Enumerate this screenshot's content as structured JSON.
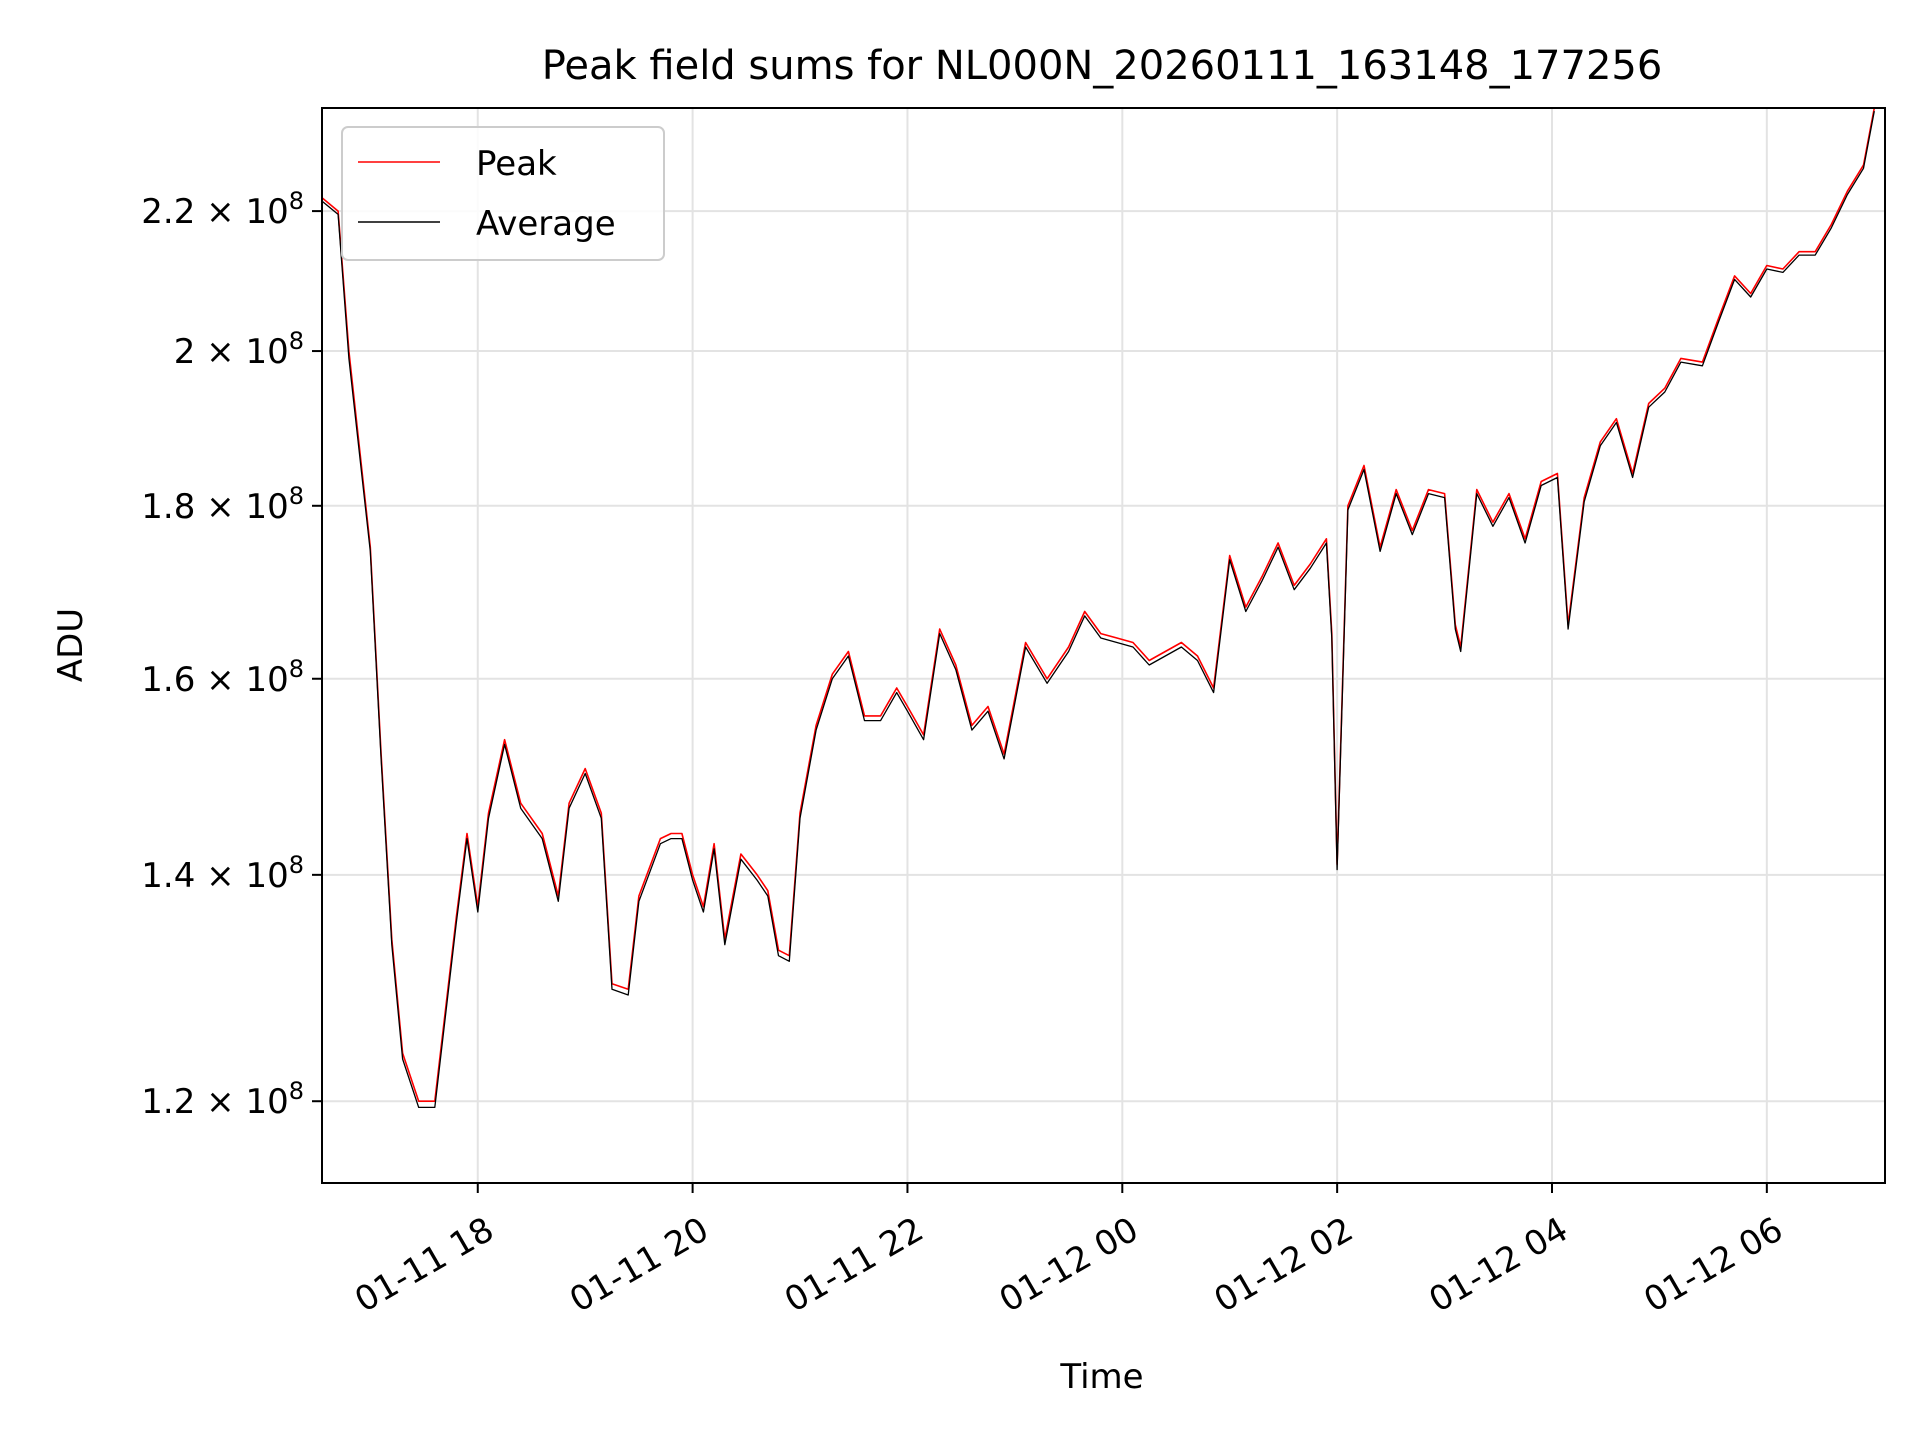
{
  "chart_data": {
    "type": "line",
    "title": "Peak field sums for NL000N_20260111_163148_177256",
    "xlabel": "Time",
    "ylabel": "ADU",
    "yscale": "log",
    "grid": true,
    "legend_location": "upper-left",
    "xlim_hours_from_2026-01-11T00:00": [
      16.55,
      31.1
    ],
    "ylim": [
      113500000,
      236000000
    ],
    "x_ticks": [
      {
        "hour": 18,
        "label": "01-11 18"
      },
      {
        "hour": 20,
        "label": "01-11 20"
      },
      {
        "hour": 22,
        "label": "01-11 22"
      },
      {
        "hour": 24,
        "label": "01-12 00"
      },
      {
        "hour": 26,
        "label": "01-12 02"
      },
      {
        "hour": 28,
        "label": "01-12 04"
      },
      {
        "hour": 30,
        "label": "01-12 06"
      }
    ],
    "y_ticks": [
      {
        "value": 120000000,
        "mantissa": "1.2",
        "base": "10",
        "exponent": "8"
      },
      {
        "value": 140000000,
        "mantissa": "1.4",
        "base": "10",
        "exponent": "8"
      },
      {
        "value": 160000000,
        "mantissa": "1.6",
        "base": "10",
        "exponent": "8"
      },
      {
        "value": 180000000,
        "mantissa": "1.8",
        "base": "10",
        "exponent": "8"
      },
      {
        "value": 200000000,
        "mantissa": "2",
        "base": "10",
        "exponent": "8"
      },
      {
        "value": 220000000,
        "mantissa": "2.2",
        "base": "10",
        "exponent": "8"
      }
    ],
    "series_x_hours": [
      16.55,
      16.7,
      16.8,
      17.0,
      17.1,
      17.2,
      17.3,
      17.45,
      17.6,
      17.8,
      17.9,
      18.0,
      18.1,
      18.25,
      18.4,
      18.6,
      18.75,
      18.85,
      19.0,
      19.15,
      19.25,
      19.4,
      19.5,
      19.7,
      19.8,
      19.9,
      20.0,
      20.1,
      20.2,
      20.3,
      20.45,
      20.6,
      20.7,
      20.8,
      20.9,
      21.0,
      21.15,
      21.3,
      21.45,
      21.6,
      21.75,
      21.9,
      22.0,
      22.15,
      22.3,
      22.45,
      22.6,
      22.75,
      22.9,
      23.1,
      23.3,
      23.5,
      23.65,
      23.8,
      23.95,
      24.1,
      24.25,
      24.4,
      24.55,
      24.7,
      24.85,
      25.0,
      25.15,
      25.3,
      25.45,
      25.6,
      25.75,
      25.9,
      25.95,
      26.0,
      26.1,
      26.25,
      26.4,
      26.55,
      26.7,
      26.85,
      27.0,
      27.1,
      27.15,
      27.3,
      27.45,
      27.6,
      27.75,
      27.9,
      28.05,
      28.15,
      28.3,
      28.45,
      28.6,
      28.75,
      28.9,
      29.05,
      29.2,
      29.4,
      29.55,
      29.7,
      29.85,
      30.0,
      30.15,
      30.3,
      30.45,
      30.6,
      30.75,
      30.9,
      31.0
    ],
    "series": [
      {
        "name": "Peak",
        "color": "#ff0000",
        "values": [
          222000000,
          220000000,
          200000000,
          175000000,
          152000000,
          134000000,
          124000000,
          120000000,
          120000000,
          136000000,
          144000000,
          137000000,
          146000000,
          153500000,
          147000000,
          144000000,
          138000000,
          147000000,
          150500000,
          146000000,
          130000000,
          129500000,
          138000000,
          143500000,
          144000000,
          144000000,
          140000000,
          137000000,
          143000000,
          134000000,
          142000000,
          140000000,
          138500000,
          133000000,
          132500000,
          146000000,
          155000000,
          160500000,
          163000000,
          156000000,
          156000000,
          159000000,
          157000000,
          154000000,
          165500000,
          161500000,
          155000000,
          157000000,
          152000000,
          164000000,
          160000000,
          163500000,
          167500000,
          165000000,
          164500000,
          164000000,
          162000000,
          163000000,
          164000000,
          162500000,
          159000000,
          174000000,
          168000000,
          171500000,
          175500000,
          170500000,
          173000000,
          176000000,
          165000000,
          141000000,
          180000000,
          185000000,
          175000000,
          182000000,
          177000000,
          182000000,
          181500000,
          166000000,
          163500000,
          182000000,
          178000000,
          181500000,
          176000000,
          183000000,
          184000000,
          166000000,
          181000000,
          188000000,
          191000000,
          184000000,
          193000000,
          195000000,
          199000000,
          198500000,
          204500000,
          210500000,
          208000000,
          212000000,
          211500000,
          214000000,
          214000000,
          218000000,
          223000000,
          227000000,
          236000000
        ]
      },
      {
        "name": "Average",
        "color": "#000000",
        "values": [
          221500000,
          219500000,
          199000000,
          174500000,
          151500000,
          133500000,
          123500000,
          119500000,
          119500000,
          135500000,
          143500000,
          136500000,
          145500000,
          153000000,
          146500000,
          143500000,
          137500000,
          146500000,
          150000000,
          145500000,
          129500000,
          129000000,
          137500000,
          143000000,
          143500000,
          143500000,
          139500000,
          136500000,
          142500000,
          133500000,
          141500000,
          139500000,
          138000000,
          132500000,
          132000000,
          145500000,
          154500000,
          160000000,
          162500000,
          155500000,
          155500000,
          158500000,
          156500000,
          153500000,
          165000000,
          161000000,
          154500000,
          156500000,
          151500000,
          163500000,
          159500000,
          163000000,
          167000000,
          164500000,
          164000000,
          163500000,
          161500000,
          162500000,
          163500000,
          162000000,
          158500000,
          173500000,
          167500000,
          171000000,
          175000000,
          170000000,
          172500000,
          175500000,
          164500000,
          140500000,
          179500000,
          184500000,
          174500000,
          181500000,
          176500000,
          181500000,
          181000000,
          165500000,
          163000000,
          181500000,
          177500000,
          181000000,
          175500000,
          182500000,
          183500000,
          165500000,
          180500000,
          187500000,
          190500000,
          183500000,
          192500000,
          194500000,
          198500000,
          198000000,
          204000000,
          210000000,
          207500000,
          211500000,
          211000000,
          213500000,
          213500000,
          217500000,
          222500000,
          226500000,
          235500000
        ]
      }
    ]
  }
}
